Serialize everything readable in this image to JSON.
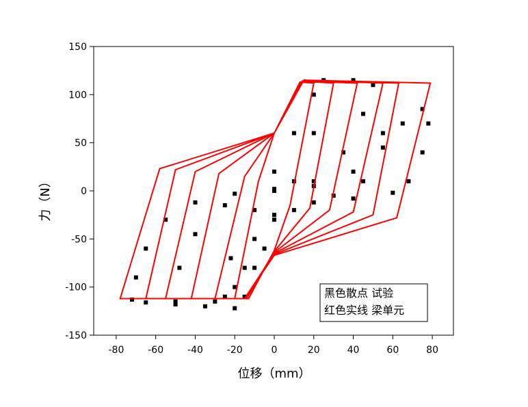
{
  "chart_data": {
    "type": "scatter",
    "xlabel": "位移（mm）",
    "ylabel": "力（N）",
    "xlim": [
      -91.4,
      90.7
    ],
    "ylim": [
      -150,
      150
    ],
    "xticks": [
      -80,
      -60,
      -40,
      -20,
      0,
      20,
      40,
      60,
      80
    ],
    "yticks": [
      -150,
      -100,
      -50,
      0,
      50,
      100,
      150
    ],
    "annotations": [
      "黑色散点  试验",
      "红色实线  梁单元"
    ],
    "series": [
      {
        "color": "#000000",
        "marker": "square",
        "x": [
          -72,
          -70,
          -65,
          -55,
          -40,
          -20,
          0,
          20,
          40,
          55,
          65,
          75,
          78,
          75,
          68,
          60,
          40,
          20,
          0,
          -10,
          -15,
          -20,
          -30,
          -50,
          -65,
          -50,
          -48,
          -40,
          -25,
          0,
          20,
          35,
          45,
          40,
          50,
          55,
          45,
          30,
          10,
          -5,
          -15,
          -35,
          -25,
          -22,
          -10,
          0,
          10,
          20,
          25,
          20,
          10,
          0,
          -10,
          -20
        ],
        "values": [
          -113,
          -90,
          -60,
          -30,
          -12,
          -3,
          2,
          5,
          20,
          45,
          70,
          85,
          70,
          40,
          10,
          -2,
          -8,
          -12,
          -25,
          -50,
          -80,
          -100,
          -115,
          -118,
          -116,
          -115,
          -80,
          -45,
          -15,
          0,
          10,
          40,
          80,
          115,
          110,
          60,
          10,
          -5,
          -20,
          -60,
          -110,
          -120,
          -110,
          -70,
          -20,
          20,
          60,
          100,
          115,
          60,
          10,
          -30,
          -80,
          -122
        ]
      },
      {
        "color": "#ff0000",
        "marker": "none",
        "x": [
          -20,
          -8,
          0,
          13,
          20,
          8,
          0,
          -13,
          -30,
          -15,
          0,
          14,
          30,
          18,
          0,
          -14,
          -42,
          -28,
          0,
          14,
          42,
          28,
          0,
          -14,
          -55,
          -40,
          0,
          15,
          55,
          40,
          0,
          -15,
          -65,
          -50,
          0,
          15,
          63,
          50,
          0,
          -15,
          -78,
          -58,
          0,
          15,
          79,
          62,
          0,
          -15,
          -78
        ],
        "values": [
          -112,
          10,
          60,
          113,
          112,
          -15,
          -62,
          -112,
          -112,
          15,
          60,
          114,
          112,
          -18,
          -63,
          -112,
          -112,
          18,
          60,
          114,
          112,
          -20,
          -64,
          -112,
          -112,
          20,
          60,
          115,
          112,
          -22,
          -65,
          -112,
          -112,
          22,
          60,
          115,
          112,
          -25,
          -66,
          -112,
          -112,
          23,
          60,
          115,
          112,
          -28,
          -67,
          -112,
          -112
        ]
      }
    ]
  }
}
